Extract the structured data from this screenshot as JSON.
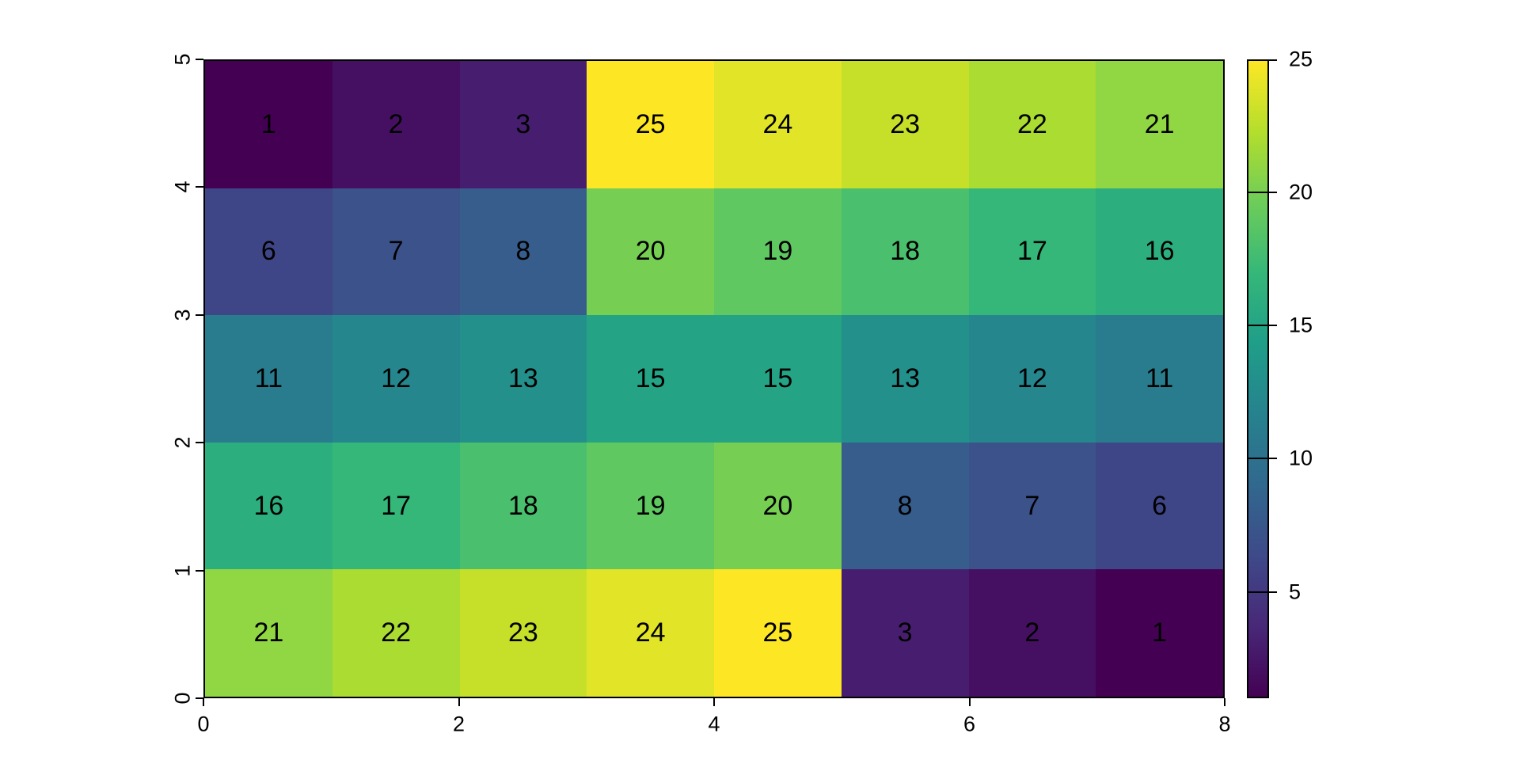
{
  "chart_data": {
    "type": "heatmap",
    "title": "",
    "xlabel": "",
    "ylabel": "",
    "x_range": [
      0,
      8
    ],
    "y_range": [
      0,
      5
    ],
    "ncols": 8,
    "nrows": 5,
    "grid": false,
    "row_order": "top-to-bottom",
    "values": [
      [
        1,
        2,
        3,
        25,
        24,
        23,
        22,
        21
      ],
      [
        6,
        7,
        8,
        20,
        19,
        18,
        17,
        16
      ],
      [
        11,
        12,
        13,
        15,
        15,
        13,
        12,
        11
      ],
      [
        16,
        17,
        18,
        19,
        20,
        8,
        7,
        6
      ],
      [
        21,
        22,
        23,
        24,
        25,
        3,
        2,
        1
      ]
    ],
    "x_ticks": [
      "0",
      "2",
      "4",
      "6",
      "8"
    ],
    "x_tick_values": [
      0,
      2,
      4,
      6,
      8
    ],
    "y_ticks": [
      "0",
      "1",
      "2",
      "3",
      "4",
      "5"
    ],
    "y_tick_values": [
      0,
      1,
      2,
      3,
      4,
      5
    ],
    "cell_label_color": "#000000",
    "axis_color": "#000000",
    "background_color": "#ffffff",
    "colorbar": {
      "position": "right",
      "min": 1,
      "max": 25,
      "ticks": [
        "5",
        "10",
        "15",
        "20",
        "25"
      ],
      "tick_values": [
        5,
        10,
        15,
        20,
        25
      ],
      "colormap": "viridis",
      "stops": [
        "#440154",
        "#482878",
        "#3E4A89",
        "#31688E",
        "#26828E",
        "#1F9E89",
        "#35B779",
        "#6DCD59",
        "#B4DE2C",
        "#FDE725"
      ]
    }
  }
}
